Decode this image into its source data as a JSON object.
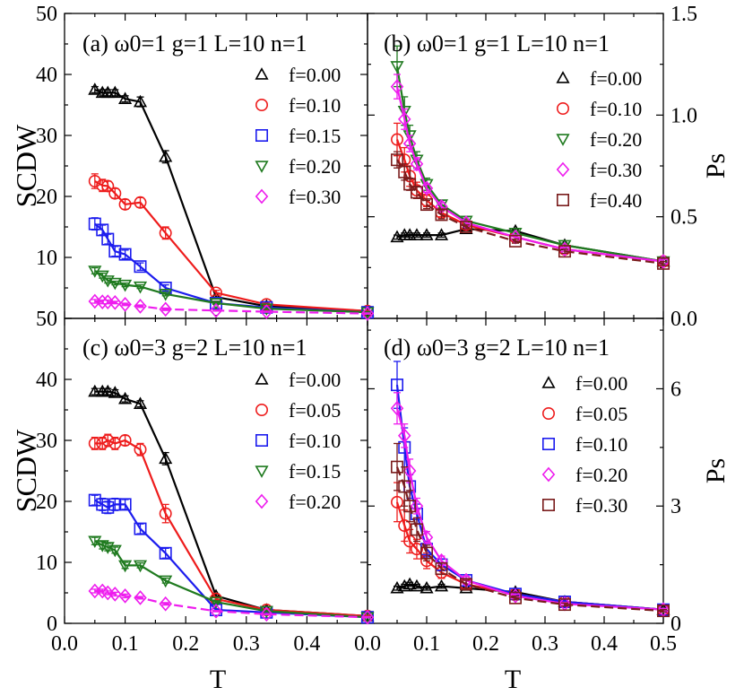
{
  "figure": {
    "x_axis_label": "T",
    "x_ticks": [
      "0.0",
      "0.1",
      "0.2",
      "0.3",
      "0.4",
      "0.0",
      "0.1",
      "0.2",
      "0.3",
      "0.4",
      "0.5"
    ],
    "top_left_y_ticks": [
      "50",
      "40",
      "30",
      "20",
      "10"
    ],
    "bottom_left_y_ticks": [
      "50",
      "40",
      "30",
      "20",
      "10",
      "0"
    ],
    "top_right_y_ticks": [
      "1.5",
      "1.0",
      "0.5",
      "0.0"
    ],
    "bottom_right_y_ticks": [
      "6",
      "3",
      "0"
    ]
  },
  "chart_data": [
    {
      "type": "line",
      "panel": "a",
      "title": "(a) ω0=1 g=1 L=10 n=1",
      "xlabel": "T",
      "ylabel": "SCDW",
      "xlim": [
        0,
        0.5
      ],
      "ylim": [
        0,
        50
      ],
      "series": [
        {
          "name": "f=0.00",
          "marker": "triangle-up",
          "color": "#000000",
          "dashed": false,
          "x": [
            0.05,
            0.0625,
            0.0714,
            0.0833,
            0.1,
            0.125,
            0.1667,
            0.25,
            0.3333,
            0.5
          ],
          "y": [
            37.5,
            37.0,
            37.0,
            37.0,
            36.0,
            35.5,
            26.5,
            3.5,
            2.0,
            1.2
          ],
          "err": [
            0.5,
            0.5,
            0.5,
            0.5,
            0.5,
            0.8,
            1.0,
            0.3,
            0.2,
            0.1
          ]
        },
        {
          "name": "f=0.10",
          "marker": "circle",
          "color": "#ee1c1c",
          "dashed": false,
          "x": [
            0.05,
            0.0625,
            0.0714,
            0.0833,
            0.1,
            0.125,
            0.1667,
            0.25,
            0.3333,
            0.5
          ],
          "y": [
            22.5,
            21.8,
            21.7,
            20.5,
            18.7,
            19.0,
            14.0,
            4.2,
            2.3,
            1.2
          ],
          "err": [
            1.2,
            1.0,
            0.8,
            0.8,
            0.8,
            0.8,
            1.0,
            0.4,
            0.2,
            0.1
          ]
        },
        {
          "name": "f=0.15",
          "marker": "square",
          "color": "#1c1cee",
          "dashed": false,
          "x": [
            0.05,
            0.0625,
            0.0714,
            0.0833,
            0.1,
            0.125,
            0.1667,
            0.25,
            0.3333,
            0.5
          ],
          "y": [
            15.5,
            14.5,
            13.0,
            11.0,
            10.5,
            8.5,
            5.0,
            2.5,
            1.8,
            1.0
          ],
          "err": [
            1.0,
            0.8,
            0.8,
            0.8,
            0.7,
            0.6,
            0.5,
            0.2,
            0.1,
            0.1
          ]
        },
        {
          "name": "f=0.20",
          "marker": "triangle-down",
          "color": "#1f7a1f",
          "dashed": false,
          "x": [
            0.05,
            0.0625,
            0.0714,
            0.0833,
            0.1,
            0.125,
            0.1667,
            0.25,
            0.3333,
            0.5
          ],
          "y": [
            7.8,
            7.0,
            6.2,
            5.8,
            5.5,
            5.2,
            4.0,
            2.5,
            1.6,
            1.0
          ],
          "err": [
            0.5,
            0.4,
            0.4,
            0.3,
            0.3,
            0.3,
            0.3,
            0.2,
            0.1,
            0.1
          ]
        },
        {
          "name": "f=0.30",
          "marker": "diamond",
          "color": "#ee1cee",
          "dashed": true,
          "x": [
            0.05,
            0.0625,
            0.0714,
            0.0833,
            0.1,
            0.125,
            0.1667,
            0.25,
            0.3333,
            0.5
          ],
          "y": [
            2.8,
            2.7,
            2.7,
            2.6,
            2.3,
            2.0,
            1.5,
            1.3,
            1.1,
            0.8
          ],
          "err": [
            0.3,
            0.3,
            0.3,
            0.2,
            0.2,
            0.2,
            0.2,
            0.1,
            0.1,
            0.1
          ]
        }
      ]
    },
    {
      "type": "line",
      "panel": "b",
      "title": "(b) ω0=1 g=1 L=10 n=1",
      "xlabel": "T",
      "ylabel": "Ps",
      "xlim": [
        0,
        0.5
      ],
      "ylim": [
        0,
        1.5
      ],
      "series": [
        {
          "name": "f=0.00",
          "marker": "triangle-up",
          "color": "#000000",
          "dashed": false,
          "x": [
            0.05,
            0.0625,
            0.0714,
            0.0833,
            0.1,
            0.125,
            0.1667,
            0.25,
            0.3333,
            0.5
          ],
          "y": [
            0.4,
            0.41,
            0.41,
            0.41,
            0.41,
            0.41,
            0.44,
            0.43,
            0.36,
            0.28
          ],
          "err": [
            0.01,
            0.01,
            0.01,
            0.01,
            0.01,
            0.01,
            0.01,
            0.01,
            0.01,
            0.01
          ]
        },
        {
          "name": "f=0.10",
          "marker": "circle",
          "color": "#ee1c1c",
          "dashed": false,
          "x": [
            0.05,
            0.0625,
            0.0714,
            0.0833,
            0.1,
            0.125,
            0.1667,
            0.25,
            0.3333,
            0.5
          ],
          "y": [
            0.88,
            0.78,
            0.7,
            0.63,
            0.58,
            0.52,
            0.46,
            0.4,
            0.34,
            0.28
          ],
          "err": [
            0.08,
            0.06,
            0.05,
            0.04,
            0.03,
            0.02,
            0.02,
            0.01,
            0.01,
            0.01
          ]
        },
        {
          "name": "f=0.20",
          "marker": "triangle-down",
          "color": "#1f7a1f",
          "dashed": false,
          "x": [
            0.05,
            0.0625,
            0.0714,
            0.0833,
            0.1,
            0.125,
            0.1667,
            0.25,
            0.3333,
            0.5
          ],
          "y": [
            1.24,
            1.02,
            0.9,
            0.78,
            0.66,
            0.56,
            0.48,
            0.42,
            0.36,
            0.28
          ],
          "err": [
            0.1,
            0.07,
            0.05,
            0.04,
            0.03,
            0.02,
            0.02,
            0.01,
            0.01,
            0.01
          ]
        },
        {
          "name": "f=0.30",
          "marker": "diamond",
          "color": "#ee1cee",
          "dashed": false,
          "x": [
            0.05,
            0.0625,
            0.0714,
            0.0833,
            0.1,
            0.125,
            0.1667,
            0.25,
            0.3333,
            0.5
          ],
          "y": [
            1.14,
            0.98,
            0.86,
            0.76,
            0.64,
            0.55,
            0.47,
            0.4,
            0.34,
            0.28
          ],
          "err": [
            0.06,
            0.05,
            0.04,
            0.03,
            0.02,
            0.02,
            0.01,
            0.01,
            0.01,
            0.01
          ]
        },
        {
          "name": "f=0.40",
          "marker": "square",
          "color": "#7a1c1c",
          "dashed": true,
          "x": [
            0.05,
            0.0625,
            0.0714,
            0.0833,
            0.1,
            0.125,
            0.1667,
            0.25,
            0.3333,
            0.5
          ],
          "y": [
            0.78,
            0.72,
            0.66,
            0.62,
            0.56,
            0.51,
            0.45,
            0.38,
            0.33,
            0.27
          ],
          "err": [
            0.04,
            0.04,
            0.03,
            0.03,
            0.02,
            0.02,
            0.01,
            0.01,
            0.01,
            0.01
          ]
        }
      ]
    },
    {
      "type": "line",
      "panel": "c",
      "title": "(c) ω0=3 g=2 L=10 n=1",
      "xlabel": "T",
      "ylabel": "SCDW",
      "xlim": [
        0,
        0.5
      ],
      "ylim": [
        0,
        50
      ],
      "series": [
        {
          "name": "f=0.00",
          "marker": "triangle-up",
          "color": "#000000",
          "dashed": false,
          "x": [
            0.05,
            0.0625,
            0.0714,
            0.0833,
            0.1,
            0.125,
            0.1667,
            0.25,
            0.3333,
            0.5
          ],
          "y": [
            38.0,
            38.0,
            38.0,
            37.8,
            36.8,
            36.0,
            27.0,
            4.5,
            2.2,
            1.2
          ],
          "err": [
            0.5,
            0.5,
            0.5,
            0.5,
            0.5,
            0.5,
            1.0,
            0.3,
            0.2,
            0.1
          ]
        },
        {
          "name": "f=0.05",
          "marker": "circle",
          "color": "#ee1c1c",
          "dashed": false,
          "x": [
            0.05,
            0.0625,
            0.0714,
            0.0833,
            0.1,
            0.125,
            0.1667,
            0.25,
            0.3333,
            0.5
          ],
          "y": [
            29.5,
            29.5,
            30.0,
            29.5,
            30.0,
            28.5,
            18.0,
            4.0,
            2.2,
            1.2
          ],
          "err": [
            1.0,
            1.0,
            1.0,
            1.0,
            0.8,
            1.0,
            1.5,
            0.3,
            0.2,
            0.1
          ]
        },
        {
          "name": "f=0.10",
          "marker": "square",
          "color": "#1c1cee",
          "dashed": false,
          "x": [
            0.05,
            0.0625,
            0.0714,
            0.0833,
            0.1,
            0.125,
            0.1667,
            0.25,
            0.3333,
            0.5
          ],
          "y": [
            20.2,
            19.5,
            19.0,
            19.5,
            19.5,
            15.5,
            11.5,
            2.2,
            1.8,
            1.0
          ],
          "err": [
            0.8,
            1.0,
            1.0,
            1.0,
            0.8,
            0.8,
            0.8,
            0.2,
            0.1,
            0.1
          ]
        },
        {
          "name": "f=0.15",
          "marker": "triangle-down",
          "color": "#1f7a1f",
          "dashed": false,
          "x": [
            0.05,
            0.0625,
            0.0714,
            0.0833,
            0.1,
            0.125,
            0.1667,
            0.25,
            0.3333,
            0.5
          ],
          "y": [
            13.5,
            12.8,
            12.5,
            12.0,
            9.5,
            9.5,
            7.0,
            3.5,
            2.0,
            1.0
          ],
          "err": [
            0.6,
            0.6,
            0.6,
            0.5,
            0.5,
            0.4,
            0.4,
            0.2,
            0.1,
            0.1
          ]
        },
        {
          "name": "f=0.20",
          "marker": "diamond",
          "color": "#ee1cee",
          "dashed": true,
          "x": [
            0.05,
            0.0625,
            0.0714,
            0.0833,
            0.1,
            0.125,
            0.1667,
            0.25,
            0.3333,
            0.5
          ],
          "y": [
            5.3,
            5.3,
            5.0,
            4.8,
            4.5,
            4.2,
            3.2,
            2.0,
            1.5,
            1.0
          ],
          "err": [
            0.3,
            0.3,
            0.3,
            0.3,
            0.3,
            0.2,
            0.2,
            0.1,
            0.1,
            0.1
          ]
        }
      ]
    },
    {
      "type": "line",
      "panel": "d",
      "title": "(d) ω0=3 g=2 L=10 n=1",
      "xlabel": "T",
      "ylabel": "Ps",
      "xlim": [
        0,
        0.5
      ],
      "ylim": [
        0,
        7.8
      ],
      "series": [
        {
          "name": "f=0.00",
          "marker": "triangle-up",
          "color": "#000000",
          "dashed": false,
          "x": [
            0.05,
            0.0625,
            0.0714,
            0.0833,
            0.1,
            0.125,
            0.1667,
            0.25,
            0.3333,
            0.5
          ],
          "y": [
            0.9,
            0.95,
            1.0,
            0.95,
            0.9,
            0.95,
            0.9,
            0.8,
            0.55,
            0.35
          ],
          "err": [
            0.05,
            0.05,
            0.05,
            0.05,
            0.05,
            0.05,
            0.05,
            0.05,
            0.03,
            0.02
          ]
        },
        {
          "name": "f=0.05",
          "marker": "circle",
          "color": "#ee1c1c",
          "dashed": false,
          "x": [
            0.05,
            0.0625,
            0.0714,
            0.0833,
            0.1,
            0.125,
            0.1667,
            0.25,
            0.3333,
            0.5
          ],
          "y": [
            3.1,
            2.5,
            2.1,
            1.9,
            1.6,
            1.3,
            1.0,
            0.75,
            0.55,
            0.35
          ],
          "err": [
            0.5,
            0.4,
            0.3,
            0.25,
            0.2,
            0.15,
            0.1,
            0.05,
            0.04,
            0.03
          ]
        },
        {
          "name": "f=0.10",
          "marker": "square",
          "color": "#1c1cee",
          "dashed": false,
          "x": [
            0.05,
            0.0625,
            0.0714,
            0.0833,
            0.1,
            0.125,
            0.1667,
            0.25,
            0.3333,
            0.5
          ],
          "y": [
            6.1,
            4.5,
            3.5,
            2.8,
            1.9,
            1.5,
            1.1,
            0.75,
            0.55,
            0.35
          ],
          "err": [
            0.6,
            0.5,
            0.3,
            0.25,
            0.2,
            0.15,
            0.1,
            0.05,
            0.04,
            0.03
          ]
        },
        {
          "name": "f=0.20",
          "marker": "diamond",
          "color": "#ee1cee",
          "dashed": false,
          "x": [
            0.05,
            0.0625,
            0.0714,
            0.0833,
            0.1,
            0.125,
            0.1667,
            0.25,
            0.3333,
            0.5
          ],
          "y": [
            5.5,
            4.8,
            3.9,
            3.0,
            2.2,
            1.6,
            1.1,
            0.7,
            0.5,
            0.35
          ],
          "err": [
            0.4,
            0.3,
            0.3,
            0.2,
            0.15,
            0.12,
            0.1,
            0.05,
            0.04,
            0.03
          ]
        },
        {
          "name": "f=0.30",
          "marker": "square",
          "color": "#7a1c1c",
          "dashed": true,
          "x": [
            0.05,
            0.0625,
            0.0714,
            0.0833,
            0.1,
            0.125,
            0.1667,
            0.25,
            0.3333,
            0.5
          ],
          "y": [
            4.0,
            3.5,
            3.0,
            2.4,
            1.8,
            1.4,
            1.0,
            0.65,
            0.48,
            0.32
          ],
          "err": [
            0.6,
            0.5,
            0.4,
            0.3,
            0.2,
            0.15,
            0.1,
            0.05,
            0.04,
            0.03
          ]
        }
      ]
    }
  ]
}
